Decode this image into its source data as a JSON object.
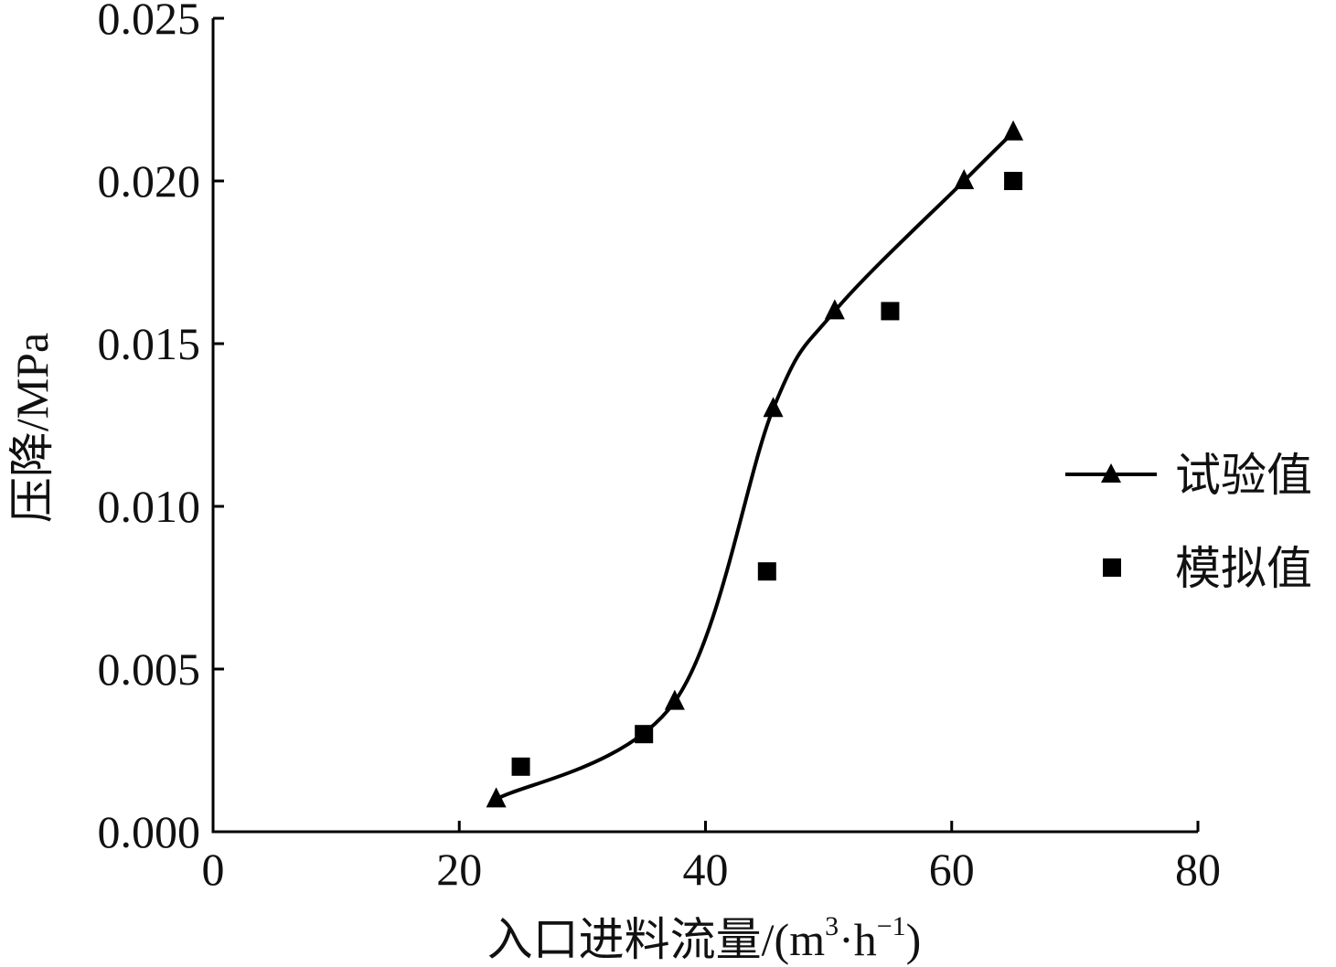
{
  "chart_data": {
    "type": "line",
    "xlabel": "入口进料流量/(m",
    "xlabel_sup1": "3",
    "xlabel_mid": "·h",
    "xlabel_sup2": "−1",
    "xlabel_end": ")",
    "ylabel": "压降/MPa",
    "xlim": [
      0,
      80
    ],
    "ylim": [
      0,
      0.025
    ],
    "x_ticks": [
      "0",
      "20",
      "40",
      "60",
      "80"
    ],
    "y_ticks": [
      "0.000",
      "0.005",
      "0.010",
      "0.015",
      "0.020",
      "0.025"
    ],
    "grid": false,
    "legend_position": "right",
    "series": [
      {
        "name": "试验值",
        "style": "line-triangle",
        "color": "#000000",
        "x": [
          23,
          37.5,
          45.5,
          50.5,
          61,
          65
        ],
        "y": [
          0.001,
          0.004,
          0.013,
          0.016,
          0.02,
          0.0215
        ]
      },
      {
        "name": "模拟值",
        "style": "square",
        "color": "#000000",
        "x": [
          25,
          35,
          45,
          55,
          65
        ],
        "y": [
          0.002,
          0.003,
          0.008,
          0.016,
          0.02
        ]
      }
    ]
  }
}
